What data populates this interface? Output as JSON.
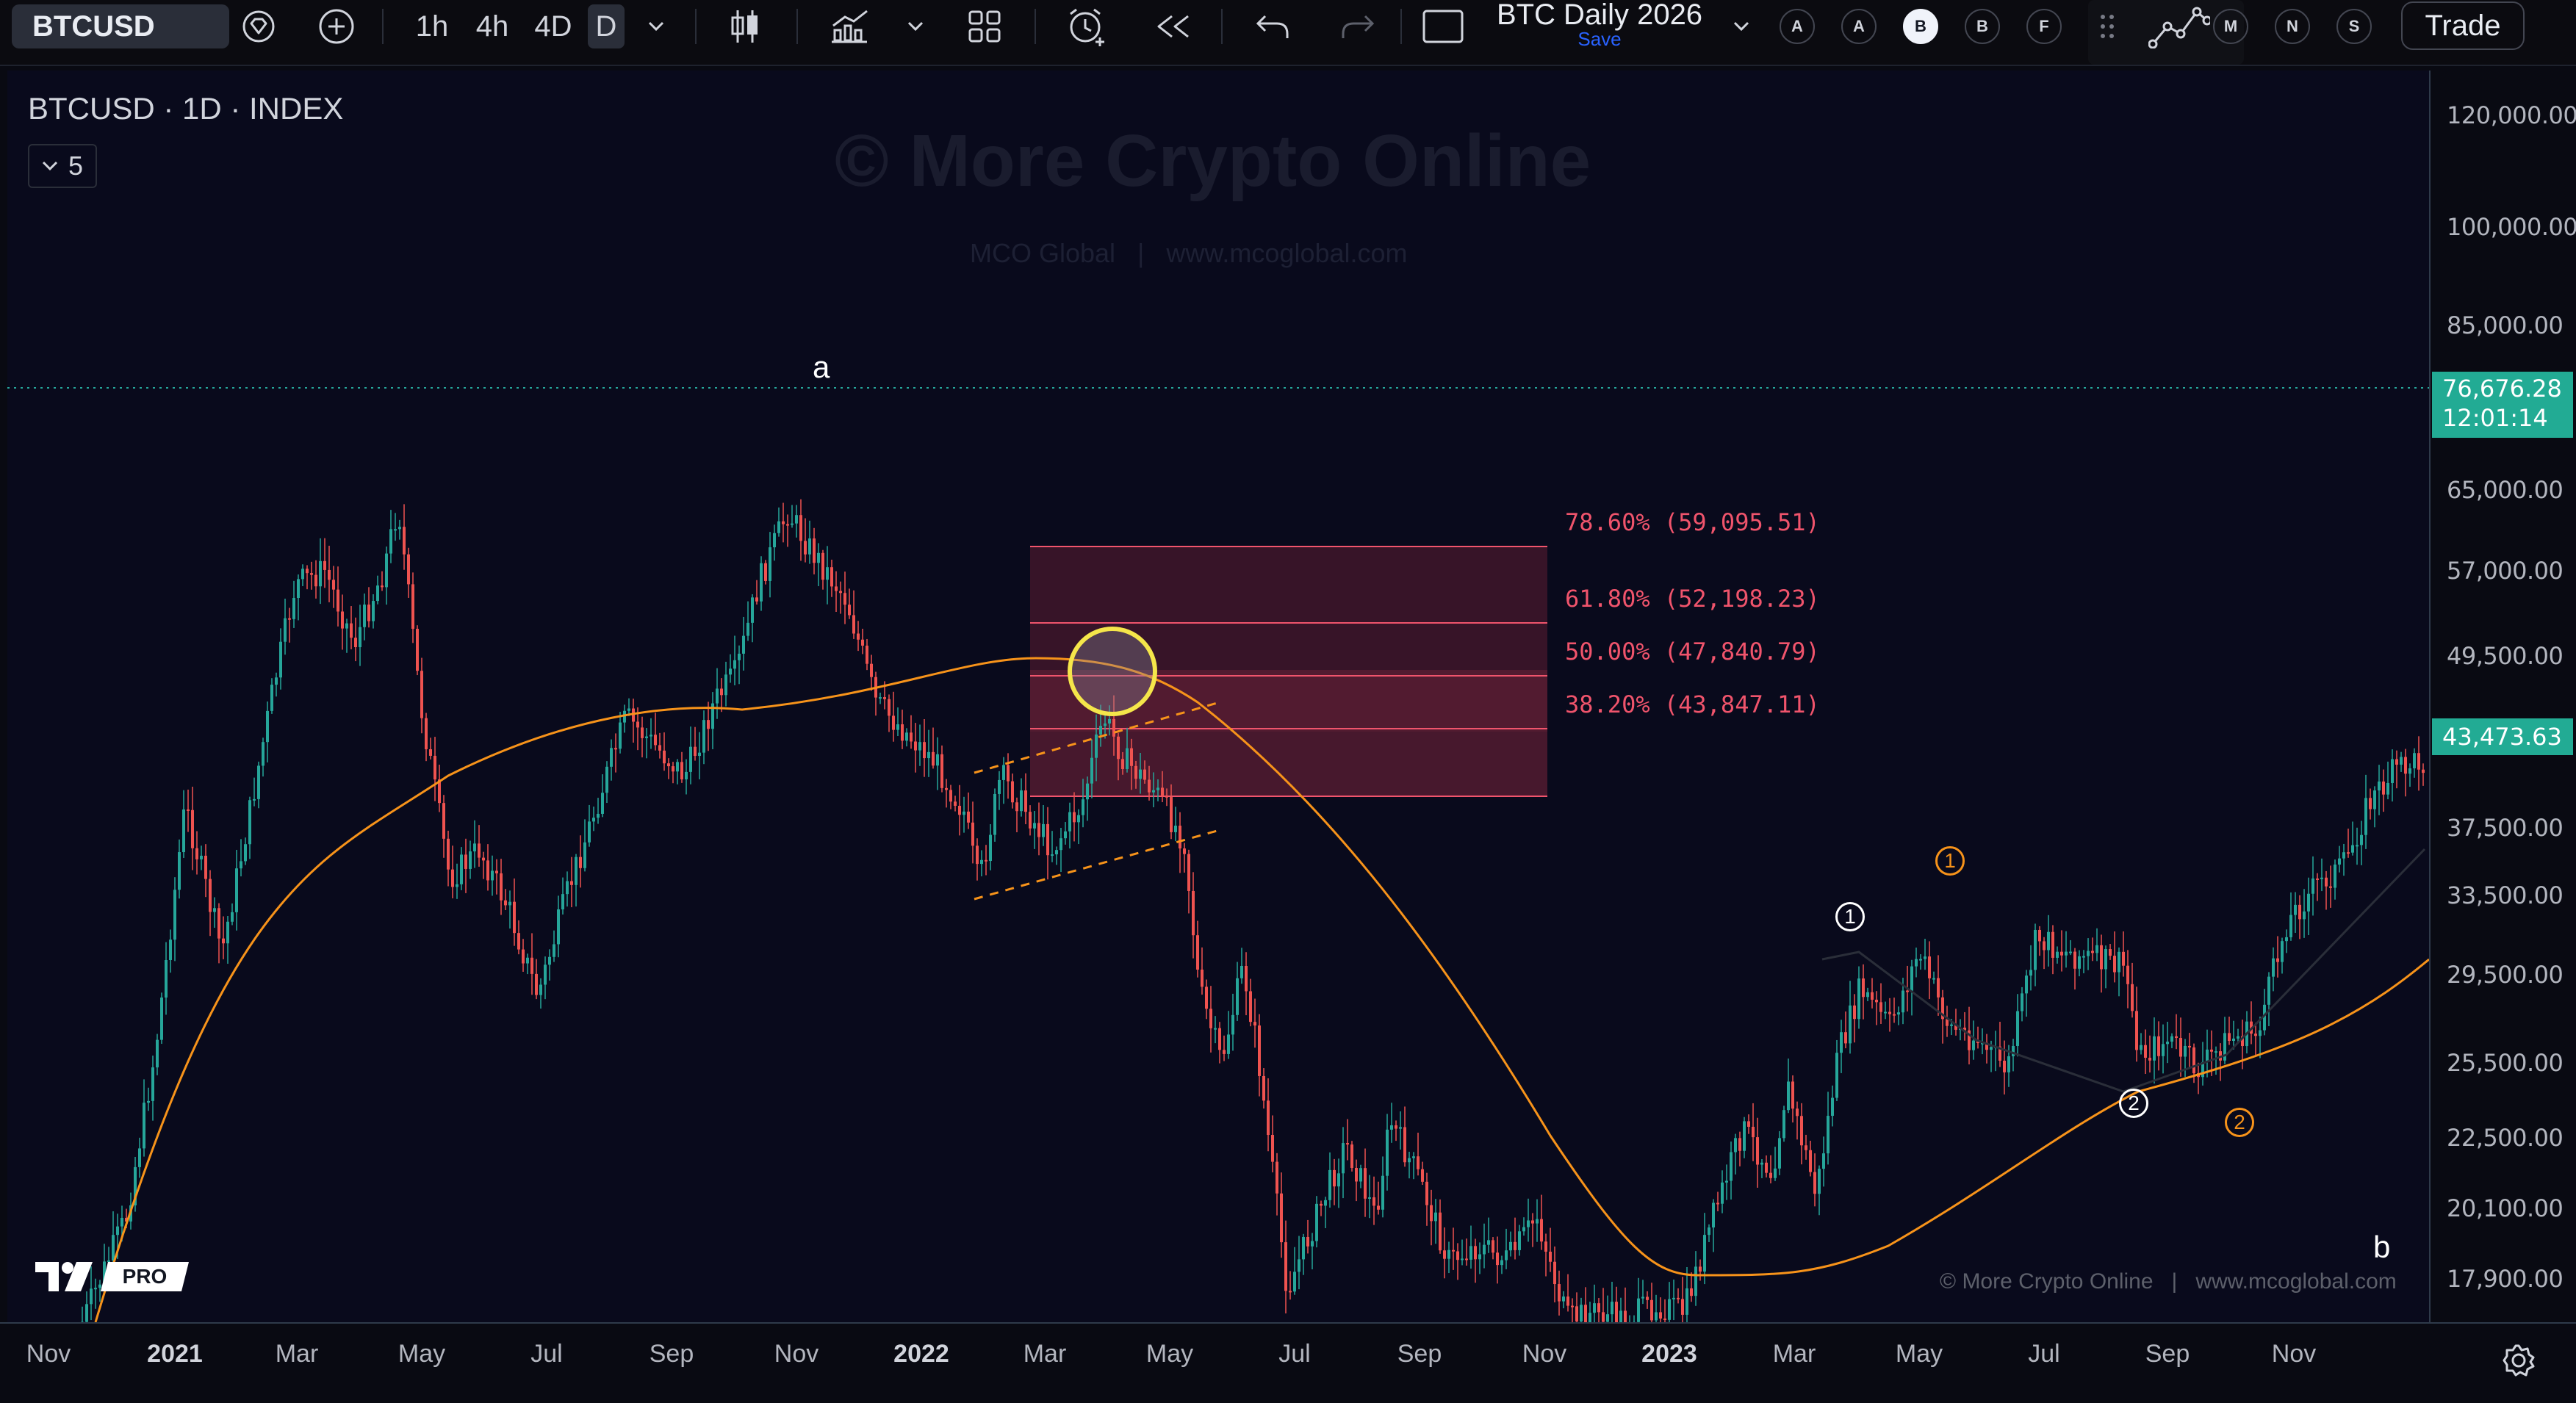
{
  "toolbar": {
    "symbol": "BTCUSD",
    "intervals": [
      "1h",
      "4h",
      "4D",
      "D"
    ],
    "selected_interval": "D",
    "layout_name": "BTC Daily 2026",
    "layout_save": "Save",
    "circle_buttons": [
      "A",
      "A",
      "B",
      "B",
      "F",
      "M",
      "N",
      "S"
    ],
    "active_circle": 2,
    "trade_label": "Trade"
  },
  "chart": {
    "title": "BTCUSD · 1D · INDEX",
    "indicator_count": "5",
    "watermark_title": "© More Crypto Online",
    "watermark_sub": "MCO Global   |   www.mcoglobal.com",
    "footer_credit": "© More Crypto Online   |   www.mcoglobal.com",
    "tv_badge": "PRO",
    "wave_label_a": "a",
    "wave_label_b": "b",
    "wave_marks": [
      {
        "label": "1",
        "color": "#ffffff"
      },
      {
        "label": "1",
        "color": "#f7931a"
      },
      {
        "label": "2",
        "color": "#ffffff"
      },
      {
        "label": "2",
        "color": "#f7931a"
      }
    ],
    "fib_levels": [
      {
        "label": "78.60% (59,095.51)",
        "value": 59095.51
      },
      {
        "label": "61.80% (52,198.23)",
        "value": 52198.23
      },
      {
        "label": "50.00% (47,840.79)",
        "value": 47840.79
      },
      {
        "label": "38.20% (43,847.11)",
        "value": 43847.11
      }
    ],
    "fib_color": "#f0546c",
    "ma_color": "#f7931a",
    "up_color": "#26a69a",
    "down_color": "#ef5350"
  },
  "price_axis": [
    "120,000.00",
    "100,000.00",
    "85,000.00",
    "65,000.00",
    "57,000.00",
    "49,500.00",
    "37,500.00",
    "33,500.00",
    "29,500.00",
    "25,500.00",
    "22,500.00",
    "20,100.00",
    "17,900.00"
  ],
  "price_tags": {
    "current_price": "76,676.28",
    "countdown": "12:01:14",
    "last_close": "43,473.63",
    "current_color": "#22ab94",
    "last_color": "#22ab94"
  },
  "time_axis": [
    {
      "label": "Nov",
      "bold": false
    },
    {
      "label": "2021",
      "bold": true
    },
    {
      "label": "Mar",
      "bold": false
    },
    {
      "label": "May",
      "bold": false
    },
    {
      "label": "Jul",
      "bold": false
    },
    {
      "label": "Sep",
      "bold": false
    },
    {
      "label": "Nov",
      "bold": false
    },
    {
      "label": "2022",
      "bold": true
    },
    {
      "label": "Mar",
      "bold": false
    },
    {
      "label": "May",
      "bold": false
    },
    {
      "label": "Jul",
      "bold": false
    },
    {
      "label": "Sep",
      "bold": false
    },
    {
      "label": "Nov",
      "bold": false
    },
    {
      "label": "2023",
      "bold": true
    },
    {
      "label": "Mar",
      "bold": false
    },
    {
      "label": "May",
      "bold": false
    },
    {
      "label": "Jul",
      "bold": false
    },
    {
      "label": "Sep",
      "bold": false
    },
    {
      "label": "Nov",
      "bold": false
    }
  ],
  "icons": [
    "diamond-icon",
    "plus-circle-icon",
    "chevron-down-icon",
    "candles-icon",
    "indicators-icon",
    "layout-grid-icon",
    "alert-clock-icon",
    "replay-icon",
    "undo-icon",
    "redo-icon",
    "fullscreen-icon",
    "drag-handle-icon",
    "node-graph-icon",
    "settings-gear-icon"
  ]
}
